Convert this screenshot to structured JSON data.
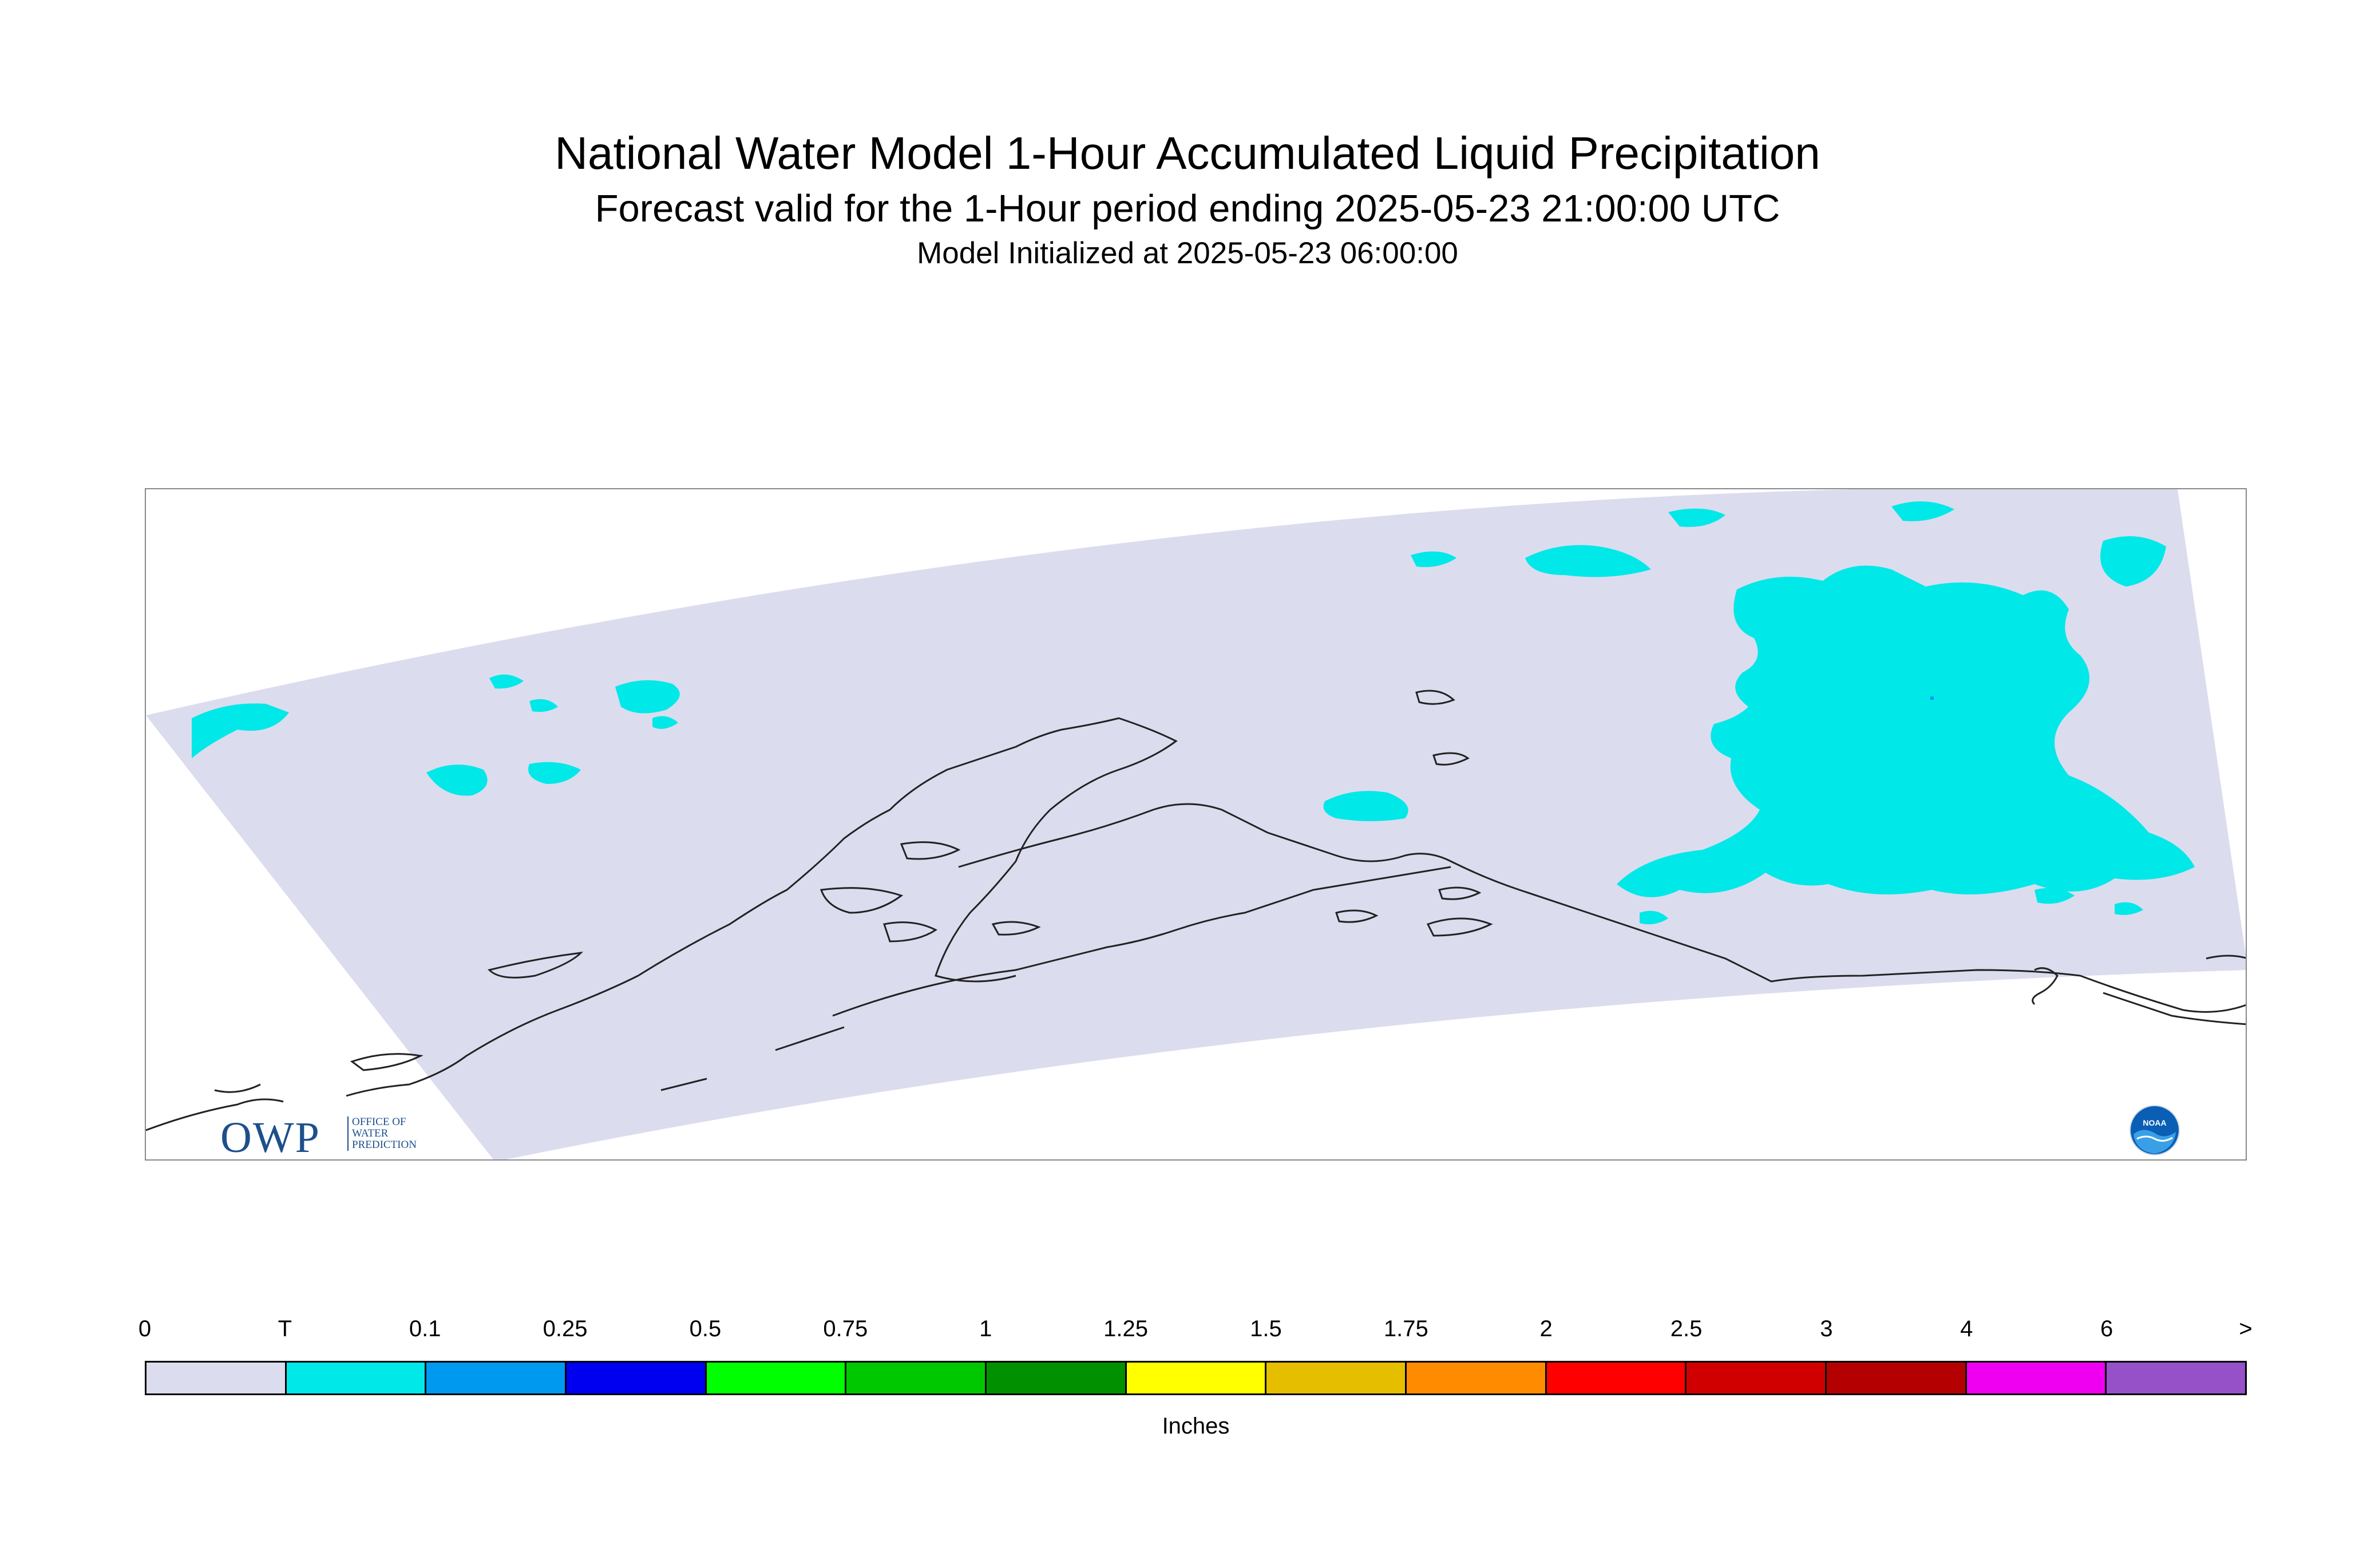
{
  "header": {
    "title": "National Water Model 1-Hour Accumulated Liquid Precipitation",
    "subtitle": "Forecast valid for the 1-Hour period ending 2025-05-23 21:00:00 UTC",
    "init": "Model Initialized at 2025-05-23 06:00:00"
  },
  "logos": {
    "owp": {
      "text": "OWP",
      "sub_line1": "OFFICE OF",
      "sub_line2": "WATER",
      "sub_line3": "PREDICTION"
    },
    "noaa": {
      "text": "NOAA"
    }
  },
  "colors": {
    "domain_fill": "#dcdcef",
    "precip_trace": "#00e8e8",
    "coastline": "#222222"
  },
  "legend": {
    "units": "Inches",
    "labels": [
      "0",
      "T",
      "0.1",
      "0.25",
      "0.5",
      "0.75",
      "1",
      "1.25",
      "1.5",
      "1.75",
      "2",
      "2.5",
      "3",
      "4",
      "6",
      ">"
    ],
    "colors": [
      "#dcdcef",
      "#00e8e8",
      "#0099f0",
      "#0000f0",
      "#00ff00",
      "#00c800",
      "#009000",
      "#ffff00",
      "#e6be00",
      "#ff8c00",
      "#ff0000",
      "#d00000",
      "#b40000",
      "#f000f0",
      "#9650c8"
    ]
  }
}
